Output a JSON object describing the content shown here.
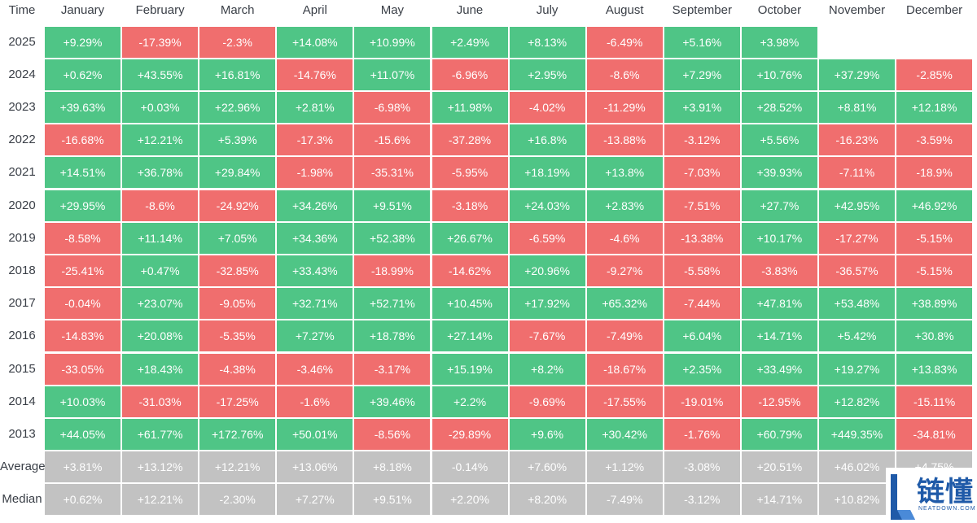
{
  "chart_data": {
    "type": "table",
    "corner_label": "Time",
    "months": [
      "January",
      "February",
      "March",
      "April",
      "May",
      "June",
      "July",
      "August",
      "September",
      "October",
      "November",
      "December"
    ],
    "rows": [
      {
        "label": "2025",
        "values": [
          "+9.29%",
          "-17.39%",
          "-2.3%",
          "+14.08%",
          "+10.99%",
          "+2.49%",
          "+8.13%",
          "-6.49%",
          "+5.16%",
          "+3.98%",
          null,
          null
        ]
      },
      {
        "label": "2024",
        "values": [
          "+0.62%",
          "+43.55%",
          "+16.81%",
          "-14.76%",
          "+11.07%",
          "-6.96%",
          "+2.95%",
          "-8.6%",
          "+7.29%",
          "+10.76%",
          "+37.29%",
          "-2.85%"
        ]
      },
      {
        "label": "2023",
        "values": [
          "+39.63%",
          "+0.03%",
          "+22.96%",
          "+2.81%",
          "-6.98%",
          "+11.98%",
          "-4.02%",
          "-11.29%",
          "+3.91%",
          "+28.52%",
          "+8.81%",
          "+12.18%"
        ]
      },
      {
        "label": "2022",
        "values": [
          "-16.68%",
          "+12.21%",
          "+5.39%",
          "-17.3%",
          "-15.6%",
          "-37.28%",
          "+16.8%",
          "-13.88%",
          "-3.12%",
          "+5.56%",
          "-16.23%",
          "-3.59%"
        ]
      },
      {
        "label": "2021",
        "values": [
          "+14.51%",
          "+36.78%",
          "+29.84%",
          "-1.98%",
          "-35.31%",
          "-5.95%",
          "+18.19%",
          "+13.8%",
          "-7.03%",
          "+39.93%",
          "-7.11%",
          "-18.9%"
        ]
      },
      {
        "label": "2020",
        "values": [
          "+29.95%",
          "-8.6%",
          "-24.92%",
          "+34.26%",
          "+9.51%",
          "-3.18%",
          "+24.03%",
          "+2.83%",
          "-7.51%",
          "+27.7%",
          "+42.95%",
          "+46.92%"
        ]
      },
      {
        "label": "2019",
        "values": [
          "-8.58%",
          "+11.14%",
          "+7.05%",
          "+34.36%",
          "+52.38%",
          "+26.67%",
          "-6.59%",
          "-4.6%",
          "-13.38%",
          "+10.17%",
          "-17.27%",
          "-5.15%"
        ]
      },
      {
        "label": "2018",
        "values": [
          "-25.41%",
          "+0.47%",
          "-32.85%",
          "+33.43%",
          "-18.99%",
          "-14.62%",
          "+20.96%",
          "-9.27%",
          "-5.58%",
          "-3.83%",
          "-36.57%",
          "-5.15%"
        ]
      },
      {
        "label": "2017",
        "values": [
          "-0.04%",
          "+23.07%",
          "-9.05%",
          "+32.71%",
          "+52.71%",
          "+10.45%",
          "+17.92%",
          "+65.32%",
          "-7.44%",
          "+47.81%",
          "+53.48%",
          "+38.89%"
        ]
      },
      {
        "label": "2016",
        "values": [
          "-14.83%",
          "+20.08%",
          "-5.35%",
          "+7.27%",
          "+18.78%",
          "+27.14%",
          "-7.67%",
          "-7.49%",
          "+6.04%",
          "+14.71%",
          "+5.42%",
          "+30.8%"
        ]
      },
      {
        "label": "2015",
        "values": [
          "-33.05%",
          "+18.43%",
          "-4.38%",
          "-3.46%",
          "-3.17%",
          "+15.19%",
          "+8.2%",
          "-18.67%",
          "+2.35%",
          "+33.49%",
          "+19.27%",
          "+13.83%"
        ]
      },
      {
        "label": "2014",
        "values": [
          "+10.03%",
          "-31.03%",
          "-17.25%",
          "-1.6%",
          "+39.46%",
          "+2.2%",
          "-9.69%",
          "-17.55%",
          "-19.01%",
          "-12.95%",
          "+12.82%",
          "-15.11%"
        ]
      },
      {
        "label": "2013",
        "values": [
          "+44.05%",
          "+61.77%",
          "+172.76%",
          "+50.01%",
          "-8.56%",
          "-29.89%",
          "+9.6%",
          "+30.42%",
          "-1.76%",
          "+60.79%",
          "+449.35%",
          "-34.81%"
        ]
      },
      {
        "label": "Average",
        "stat": true,
        "values": [
          "+3.81%",
          "+13.12%",
          "+12.21%",
          "+13.06%",
          "+8.18%",
          "-0.14%",
          "+7.60%",
          "+1.12%",
          "-3.08%",
          "+20.51%",
          "+46.02%",
          "+4.75%"
        ]
      },
      {
        "label": "Median",
        "stat": true,
        "values": [
          "+0.62%",
          "+12.21%",
          "-2.30%",
          "+7.27%",
          "+9.51%",
          "+2.20%",
          "+8.20%",
          "-7.49%",
          "-3.12%",
          "+14.71%",
          "+10.82%",
          ""
        ]
      }
    ],
    "colors": {
      "positive": "#4fc586",
      "negative": "#f06e6e",
      "stat": "#c2c2c2"
    }
  },
  "watermark": {
    "text_cn": "链懂",
    "text_en": "NEATDOWN.COM"
  }
}
